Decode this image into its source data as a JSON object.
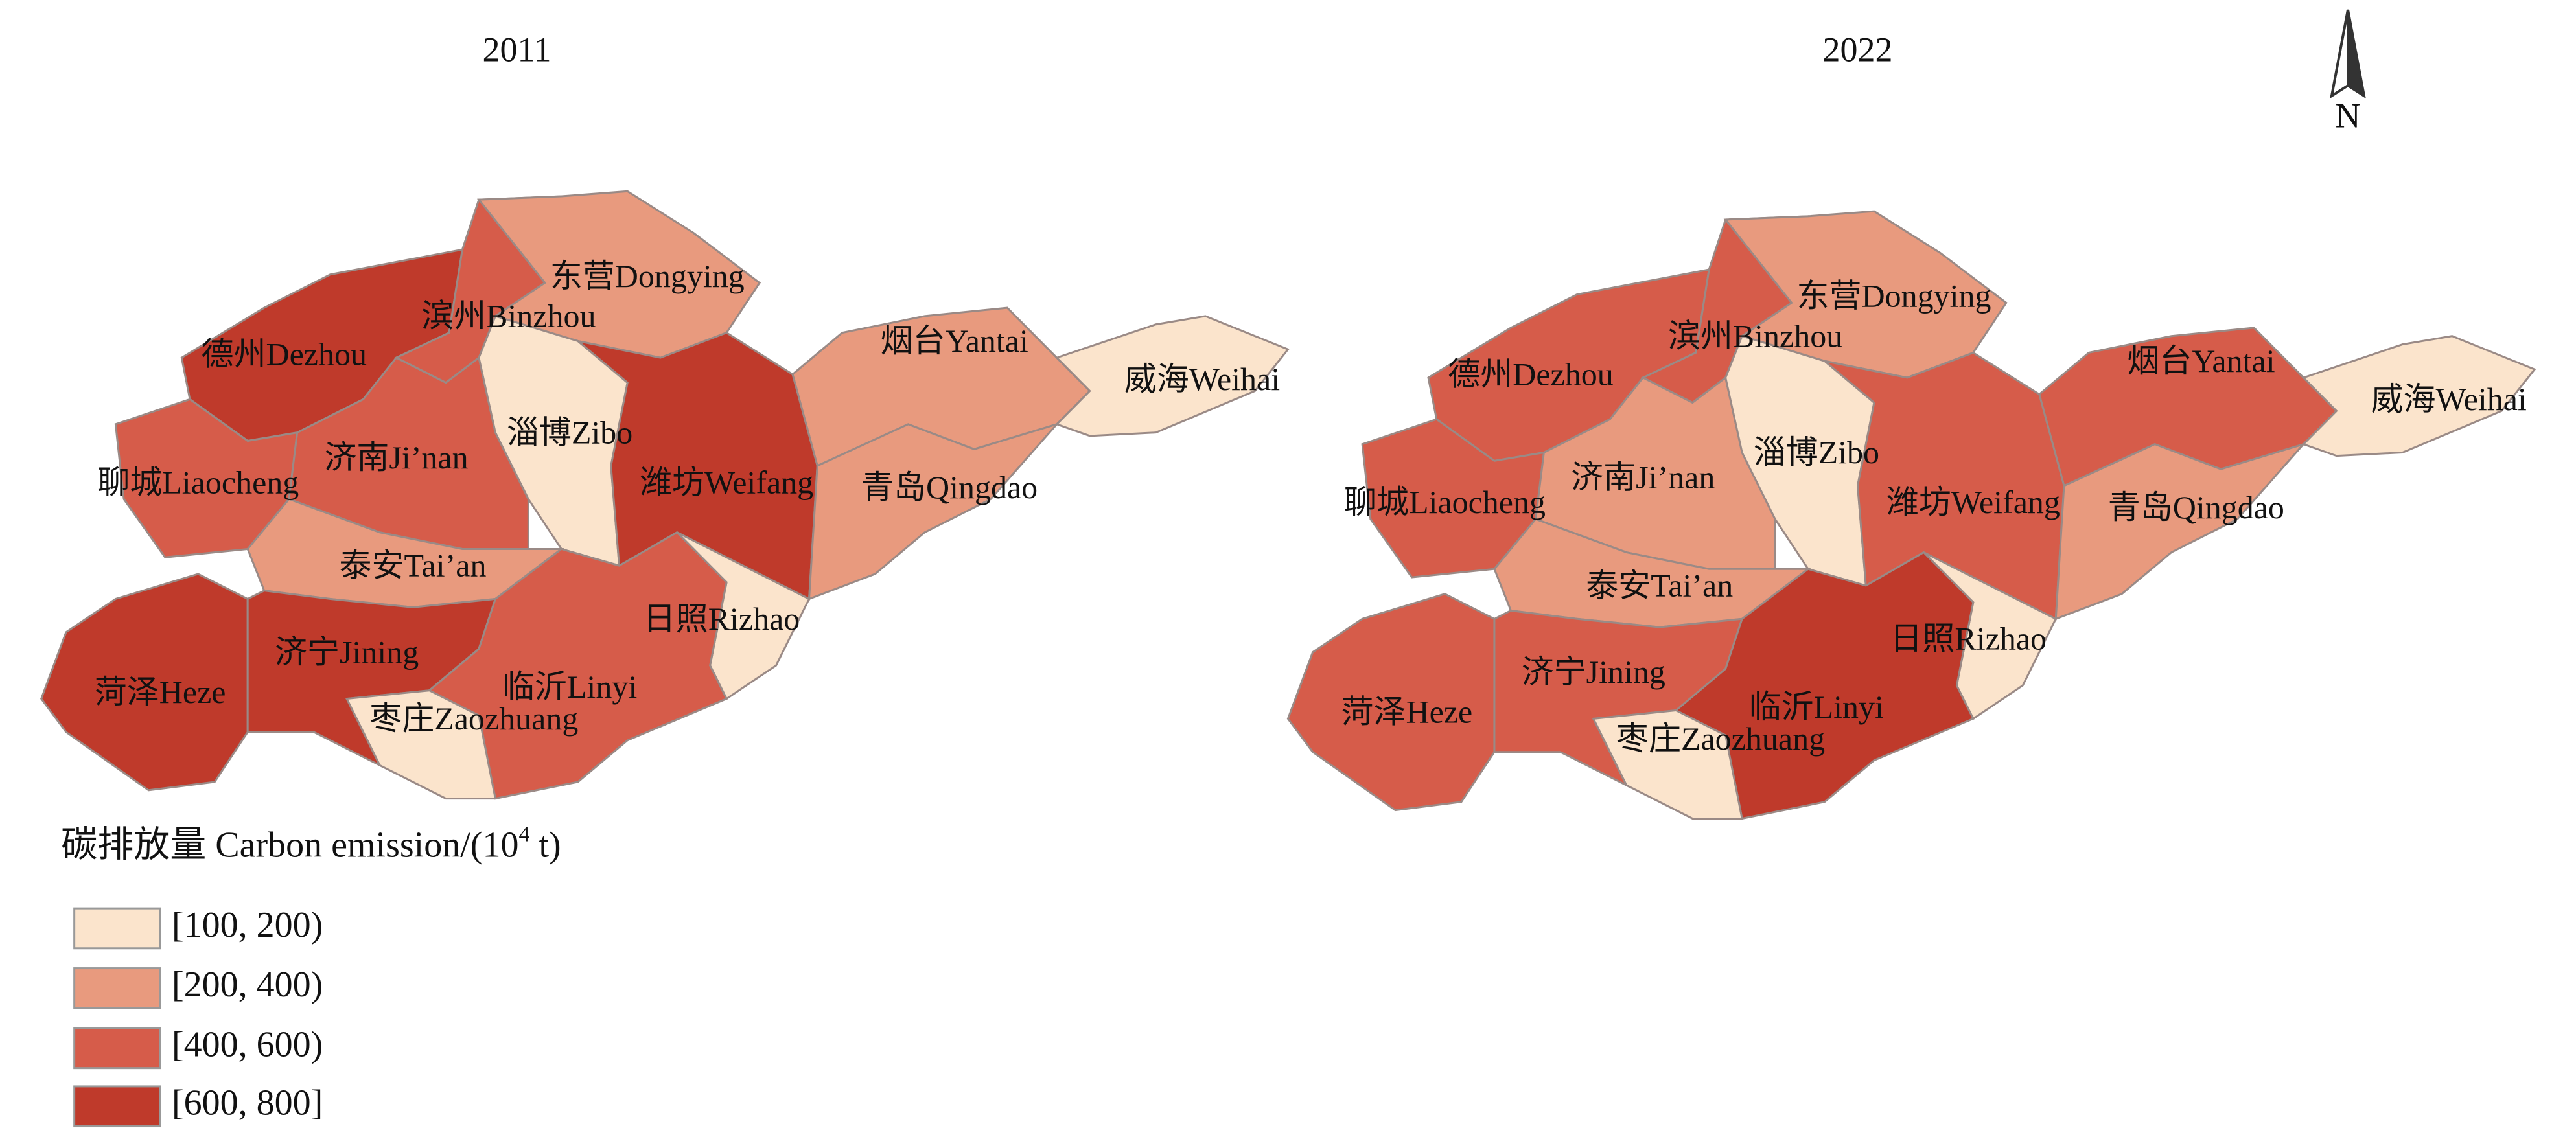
{
  "maps": [
    {
      "title": "2011",
      "regions": [
        {
          "label": "德州Dezhou",
          "color": "#bf3a2b"
        },
        {
          "label": "滨州Binzhou",
          "color": "#d65c4a"
        },
        {
          "label": "东营Dongying",
          "color": "#e89a7e"
        },
        {
          "label": "烟台Yantai",
          "color": "#e89a7e"
        },
        {
          "label": "威海Weihai",
          "color": "#fbe4cc"
        },
        {
          "label": "聊城Liaocheng",
          "color": "#d65c4a"
        },
        {
          "label": "济南Ji’nan",
          "color": "#d65c4a"
        },
        {
          "label": "淄博Zibo",
          "color": "#fbe4cc"
        },
        {
          "label": "潍坊Weifang",
          "color": "#bf3a2b"
        },
        {
          "label": "青岛Qingdao",
          "color": "#e89a7e"
        },
        {
          "label": "泰安Tai’an",
          "color": "#e89a7e"
        },
        {
          "label": "日照Rizhao",
          "color": "#fbe4cc"
        },
        {
          "label": "菏泽Heze",
          "color": "#bf3a2b"
        },
        {
          "label": "济宁Jining",
          "color": "#bf3a2b"
        },
        {
          "label": "临沂Linyi",
          "color": "#d65c4a"
        },
        {
          "label": "枣庄Zaozhuang",
          "color": "#fbe4cc"
        }
      ]
    },
    {
      "title": "2022",
      "regions": [
        {
          "label": "德州Dezhou",
          "color": "#d65c4a"
        },
        {
          "label": "滨州Binzhou",
          "color": "#d65c4a"
        },
        {
          "label": "东营Dongying",
          "color": "#e89a7e"
        },
        {
          "label": "烟台Yantai",
          "color": "#d65c4a"
        },
        {
          "label": "威海Weihai",
          "color": "#fbe4cc"
        },
        {
          "label": "聊城Liaocheng",
          "color": "#d65c4a"
        },
        {
          "label": "济南Ji’nan",
          "color": "#e89a7e"
        },
        {
          "label": "淄博Zibo",
          "color": "#fbe4cc"
        },
        {
          "label": "潍坊Weifang",
          "color": "#d65c4a"
        },
        {
          "label": "青岛Qingdao",
          "color": "#e89a7e"
        },
        {
          "label": "泰安Tai’an",
          "color": "#e89a7e"
        },
        {
          "label": "日照Rizhao",
          "color": "#fbe4cc"
        },
        {
          "label": "菏泽Heze",
          "color": "#d65c4a"
        },
        {
          "label": "济宁Jining",
          "color": "#d65c4a"
        },
        {
          "label": "临沂Linyi",
          "color": "#bf3a2b"
        },
        {
          "label": "枣庄Zaozhuang",
          "color": "#fbe4cc"
        }
      ]
    }
  ],
  "legend": {
    "title": "碳排放量 Carbon emission/(10",
    "title_superscript": "4",
    "title_end": " t)",
    "items": [
      {
        "label": "[100, 200)",
        "color": "#fbe4cc"
      },
      {
        "label": "[200, 400)",
        "color": "#e89a7e"
      },
      {
        "label": "[400, 600)",
        "color": "#d65c4a"
      },
      {
        "label": "[600, 800]",
        "color": "#bf3a2b"
      }
    ]
  },
  "north_label": "N"
}
